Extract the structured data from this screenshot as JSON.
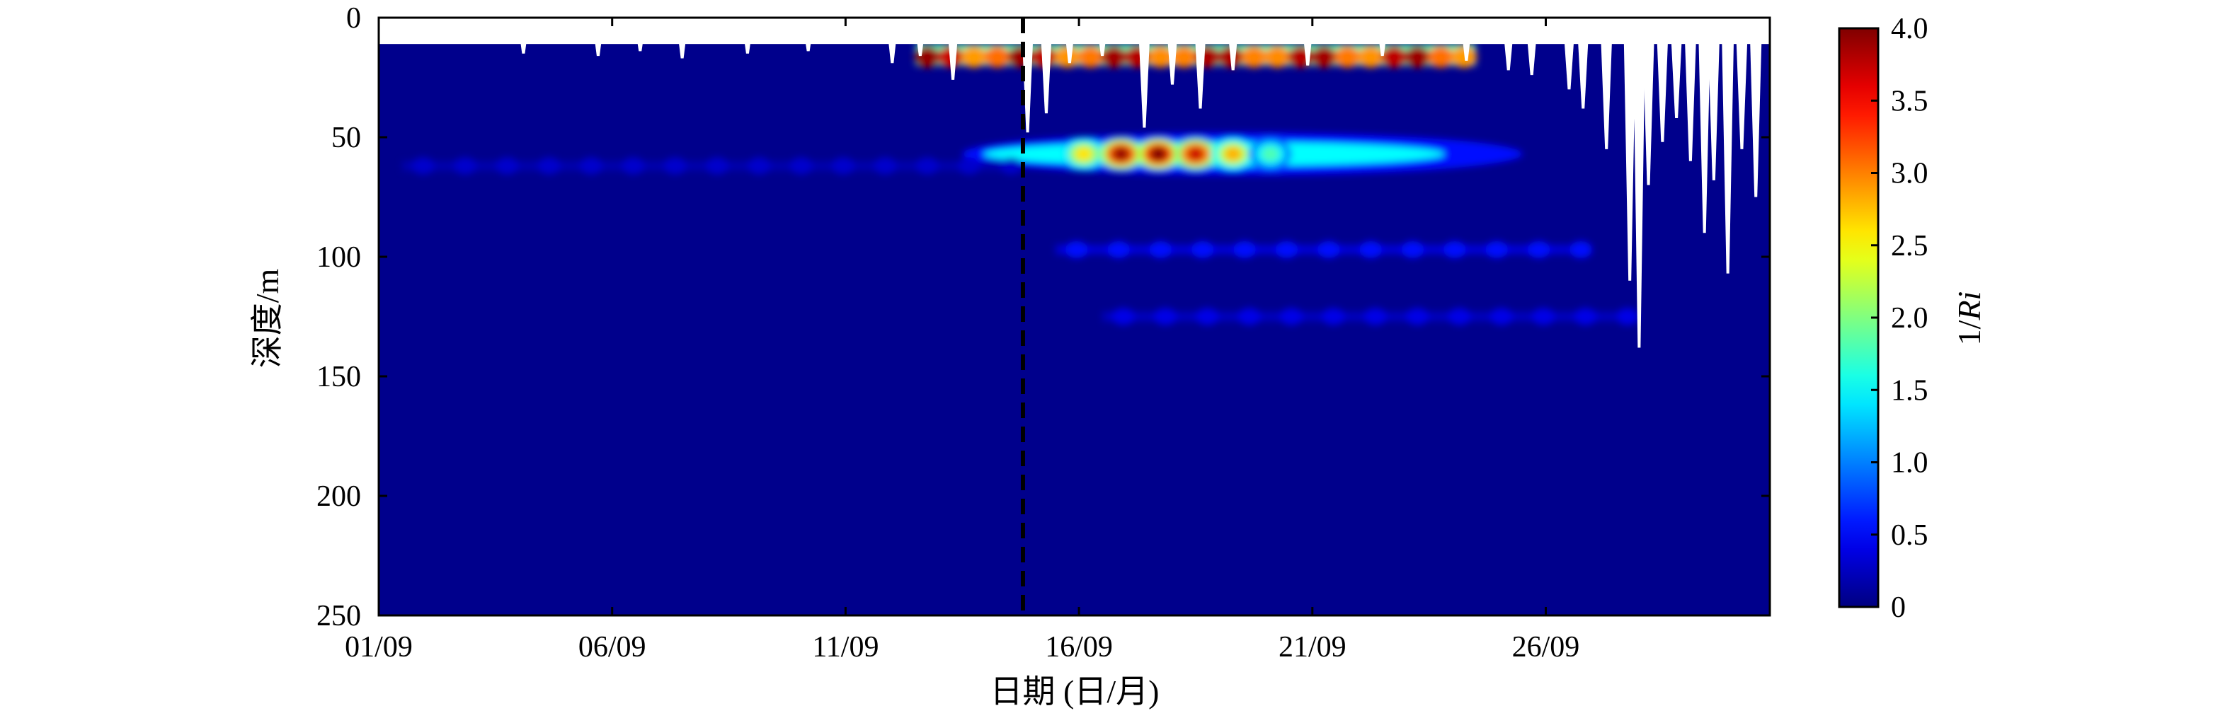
{
  "chart_data": {
    "type": "heatmap",
    "title": "",
    "xlabel": "日期 (日/月)",
    "ylabel": "深度/m",
    "x_ticks": [
      "01/09",
      "06/09",
      "11/09",
      "16/09",
      "21/09",
      "26/09"
    ],
    "x_tick_days": [
      1,
      6,
      11,
      16,
      21,
      26
    ],
    "xlim_days": [
      1,
      30.8
    ],
    "y_ticks": [
      "0",
      "50",
      "100",
      "150",
      "200",
      "250"
    ],
    "y_tick_values": [
      0,
      50,
      100,
      150,
      200,
      250
    ],
    "ylim": [
      0,
      250
    ],
    "y_reversed": true,
    "colorbar": {
      "label": "1/Ri",
      "label_prefix": "1/",
      "label_italic": "Ri",
      "ticks": [
        "0",
        "0.5",
        "1.0",
        "1.5",
        "2.0",
        "2.5",
        "3.0",
        "3.5",
        "4.0"
      ],
      "tick_values": [
        0,
        0.5,
        1.0,
        1.5,
        2.0,
        2.5,
        3.0,
        3.5,
        4.0
      ],
      "range": [
        0,
        4.0
      ],
      "colormap": "jet"
    },
    "background_value": 0.05,
    "surface_missing_depth": 11,
    "event_marker_day": 14.8,
    "features": [
      {
        "kind": "near_surface_band",
        "day_range": [
          12.5,
          24.5
        ],
        "depth_range": [
          11,
          20
        ],
        "peak_value": 4.0
      },
      {
        "kind": "mixed_layer_base_band",
        "day_range": [
          13.5,
          25.5
        ],
        "depth_center": 57,
        "peak_value": 1.5
      },
      {
        "kind": "mixed_layer_peaks",
        "days": [
          16.1,
          16.9,
          17.7,
          18.5,
          19.3,
          20.1
        ],
        "depth_center": 57,
        "peak_values": [
          2.6,
          3.9,
          4.0,
          3.7,
          2.8,
          1.8
        ]
      },
      {
        "kind": "weak_band",
        "day_range": [
          15.5,
          26.5
        ],
        "depth_center": 97,
        "peak_value": 0.55
      },
      {
        "kind": "weak_band",
        "day_range": [
          16.5,
          27.5
        ],
        "depth_center": 125,
        "peak_value": 0.4
      },
      {
        "kind": "weak_band",
        "day_range": [
          1.5,
          14.5
        ],
        "depth_center": 62,
        "peak_value": 0.3
      }
    ],
    "missing_data_gaps": [
      {
        "day": 4.1,
        "depth_bottom": 15
      },
      {
        "day": 5.7,
        "depth_bottom": 16
      },
      {
        "day": 6.6,
        "depth_bottom": 14
      },
      {
        "day": 7.5,
        "depth_bottom": 17
      },
      {
        "day": 8.9,
        "depth_bottom": 15
      },
      {
        "day": 10.2,
        "depth_bottom": 14
      },
      {
        "day": 12.0,
        "depth_bottom": 19
      },
      {
        "day": 12.6,
        "depth_bottom": 16
      },
      {
        "day": 13.3,
        "depth_bottom": 26
      },
      {
        "day": 14.9,
        "depth_bottom": 48
      },
      {
        "day": 15.3,
        "depth_bottom": 40
      },
      {
        "day": 15.8,
        "depth_bottom": 19
      },
      {
        "day": 16.5,
        "depth_bottom": 16
      },
      {
        "day": 17.4,
        "depth_bottom": 46
      },
      {
        "day": 18.0,
        "depth_bottom": 28
      },
      {
        "day": 18.6,
        "depth_bottom": 38
      },
      {
        "day": 19.3,
        "depth_bottom": 22
      },
      {
        "day": 20.9,
        "depth_bottom": 20
      },
      {
        "day": 22.5,
        "depth_bottom": 16
      },
      {
        "day": 24.3,
        "depth_bottom": 18
      },
      {
        "day": 25.2,
        "depth_bottom": 22
      },
      {
        "day": 25.7,
        "depth_bottom": 24
      },
      {
        "day": 26.5,
        "depth_bottom": 30
      },
      {
        "day": 26.8,
        "depth_bottom": 38
      },
      {
        "day": 27.3,
        "depth_bottom": 55
      },
      {
        "day": 27.8,
        "depth_bottom": 110
      },
      {
        "day": 28.0,
        "depth_bottom": 138
      },
      {
        "day": 28.2,
        "depth_bottom": 70
      },
      {
        "day": 28.5,
        "depth_bottom": 52
      },
      {
        "day": 28.8,
        "depth_bottom": 42
      },
      {
        "day": 29.1,
        "depth_bottom": 60
      },
      {
        "day": 29.4,
        "depth_bottom": 90
      },
      {
        "day": 29.6,
        "depth_bottom": 68
      },
      {
        "day": 29.9,
        "depth_bottom": 107
      },
      {
        "day": 30.2,
        "depth_bottom": 55
      },
      {
        "day": 30.5,
        "depth_bottom": 75
      }
    ]
  }
}
